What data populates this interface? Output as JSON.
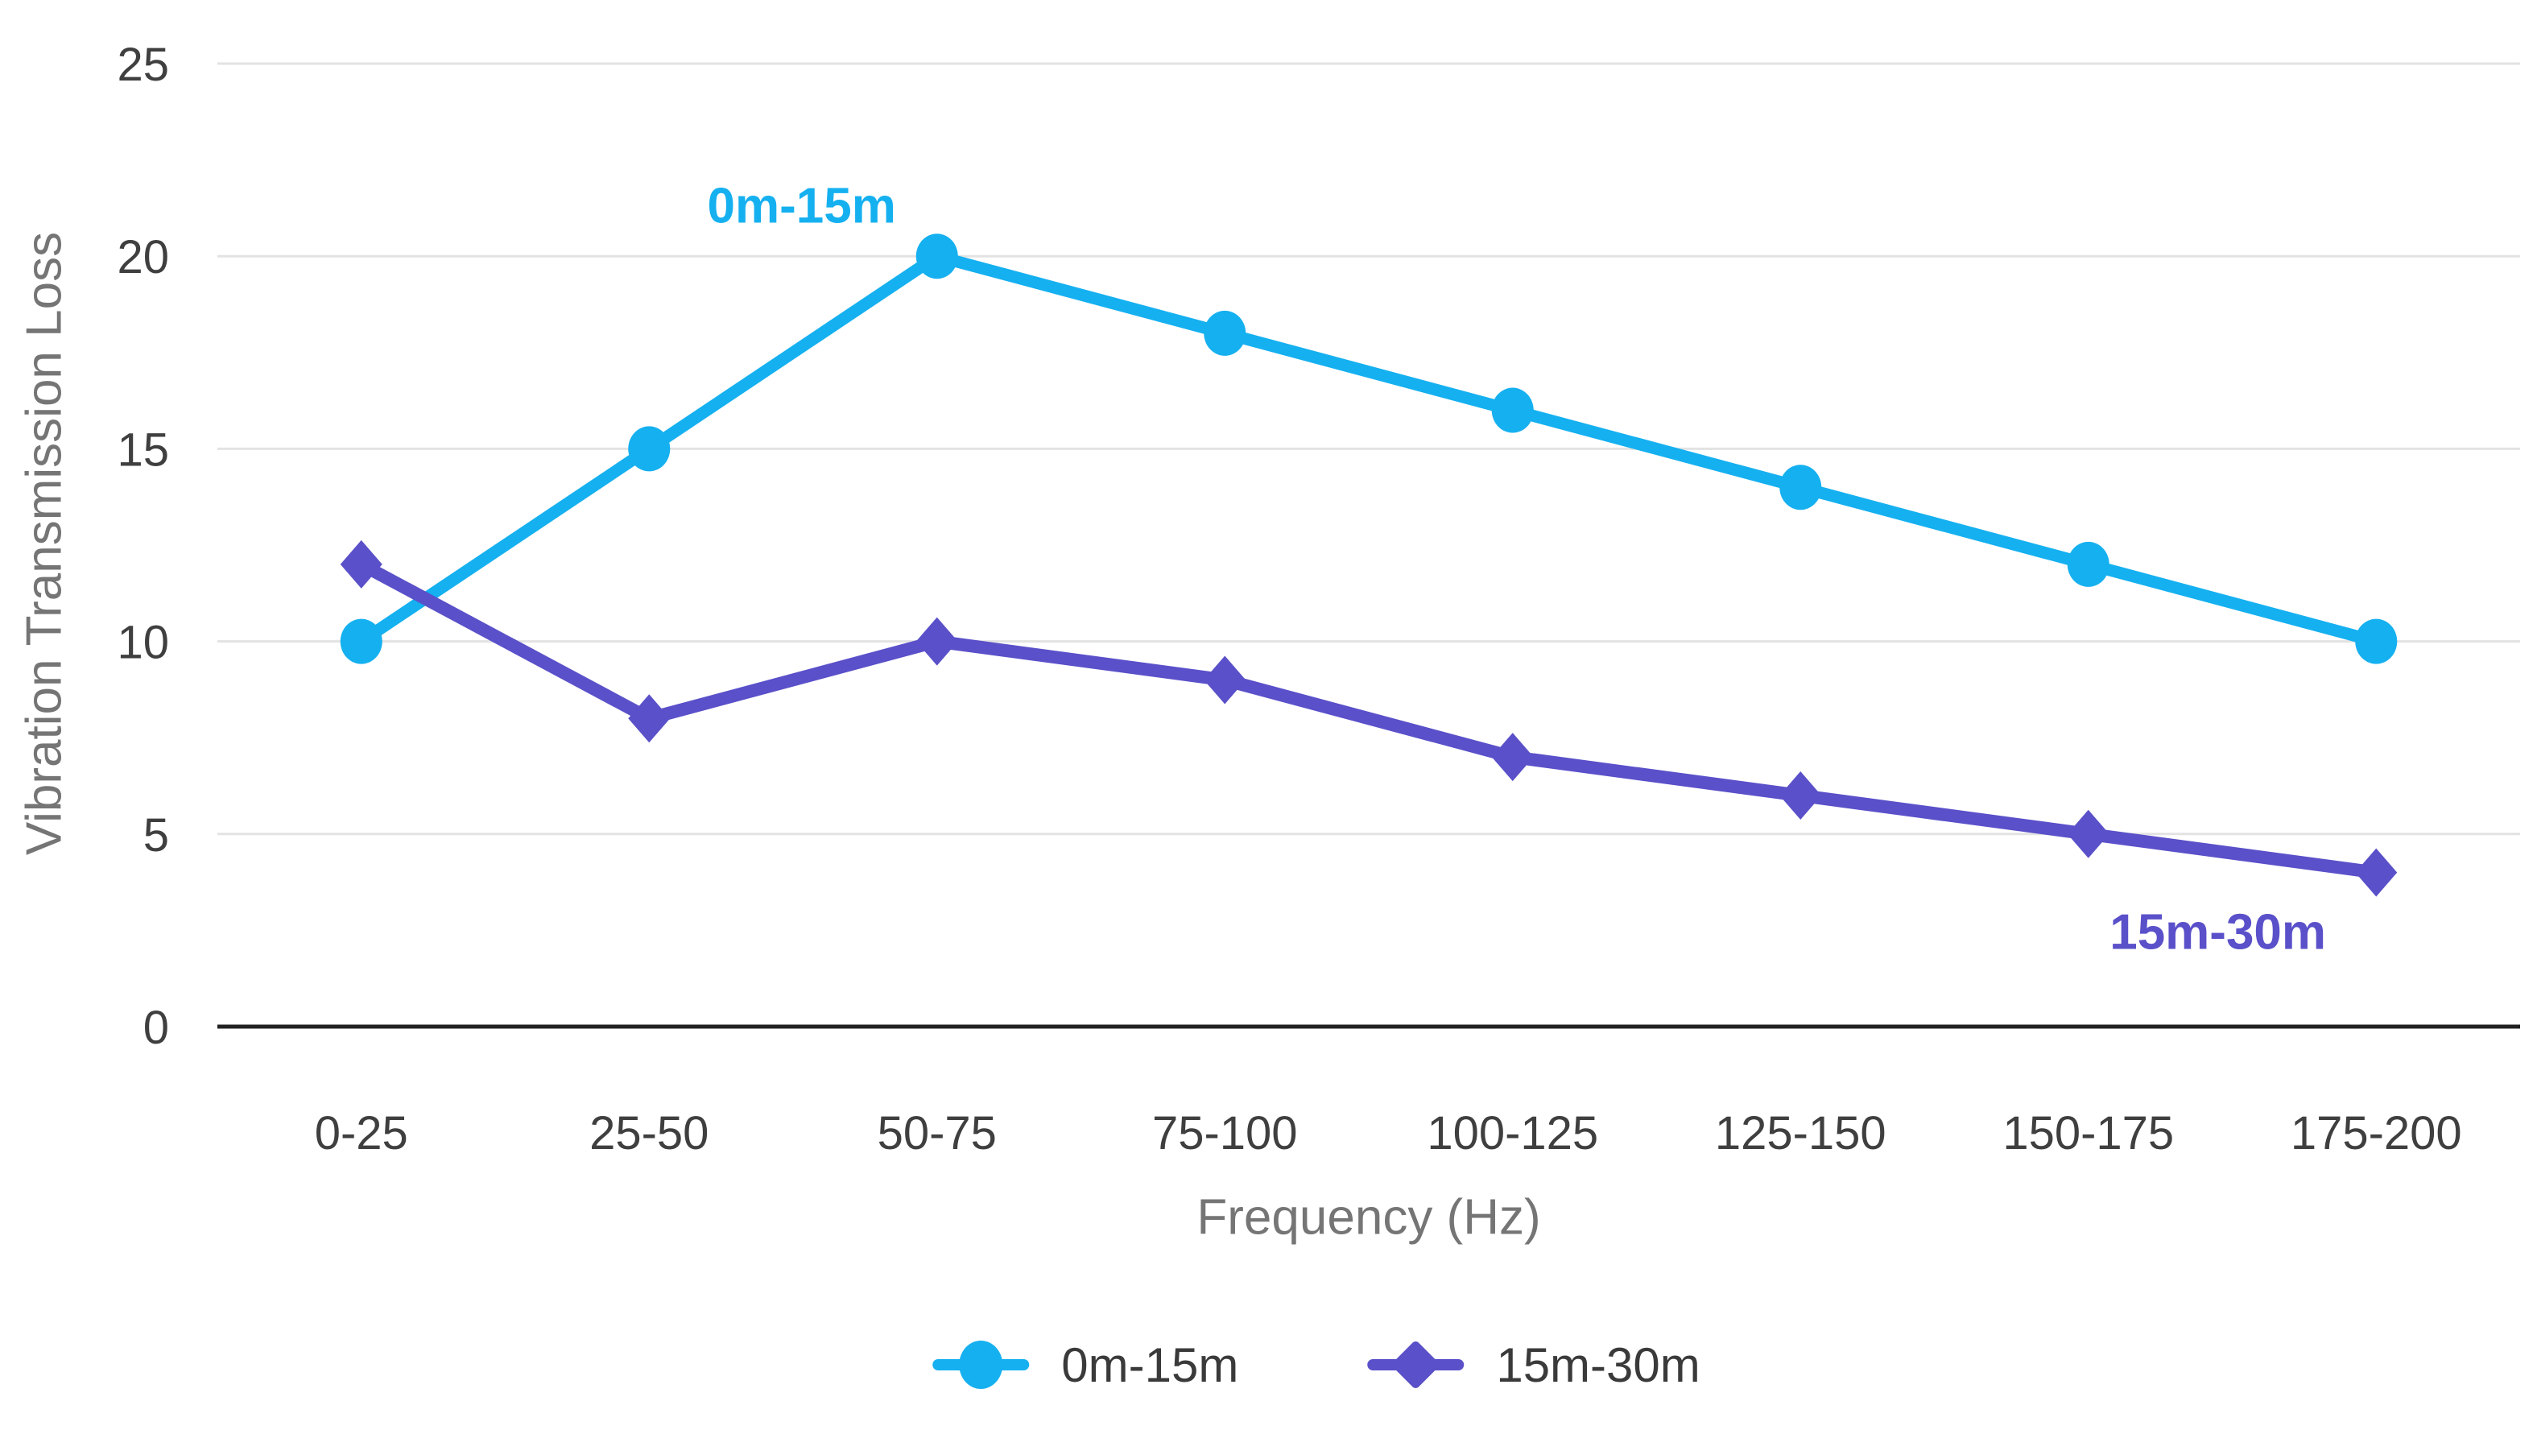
{
  "chart_data": {
    "type": "line",
    "title": "",
    "categories": [
      "0-25",
      "25-50",
      "50-75",
      "75-100",
      "100-125",
      "125-150",
      "150-175",
      "175-200"
    ],
    "series": [
      {
        "name": "0m-15m",
        "color": "#15b0f0",
        "marker": "circle",
        "values": [
          10,
          15,
          20,
          18,
          16,
          14,
          12,
          10
        ]
      },
      {
        "name": "15m-30m",
        "color": "#5a50c9",
        "marker": "diamond",
        "values": [
          12,
          8,
          10,
          9,
          7,
          6,
          5,
          4
        ]
      }
    ],
    "annotations": [
      {
        "text": "0m-15m",
        "series": 0,
        "x_index": 1.53,
        "y_value": 21.3
      },
      {
        "text": "15m-30m",
        "series": 1,
        "x_index": 6.45,
        "y_value": 2.45
      }
    ],
    "xlabel": "Frequency (Hz)",
    "ylabel": "Vibration Transmission Loss",
    "ylim": [
      0,
      25
    ],
    "yticks": [
      0,
      5,
      10,
      15,
      20,
      25
    ],
    "grid": "horizontal",
    "legend_position": "bottom",
    "style": {
      "background": "#ffffff",
      "grid_color": "#e3e3e3",
      "axis_line_color": "#212121",
      "tick_label_color": "#3f3f3f",
      "axis_title_color": "#757575",
      "legend_text_color": "#3a3a3a"
    }
  }
}
